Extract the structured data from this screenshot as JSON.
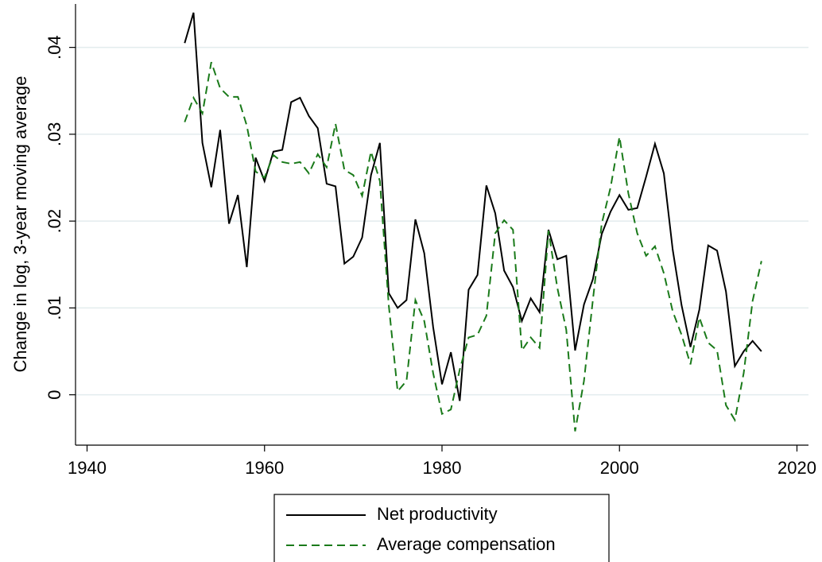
{
  "chart_data": {
    "type": "line",
    "y_label": "Change in log, 3-year moving average",
    "x": [
      1951,
      1952,
      1953,
      1954,
      1955,
      1956,
      1957,
      1958,
      1959,
      1960,
      1961,
      1962,
      1963,
      1964,
      1965,
      1966,
      1967,
      1968,
      1969,
      1970,
      1971,
      1972,
      1973,
      1974,
      1975,
      1976,
      1977,
      1978,
      1979,
      1980,
      1981,
      1982,
      1983,
      1984,
      1985,
      1986,
      1987,
      1988,
      1989,
      1990,
      1991,
      1992,
      1993,
      1994,
      1995,
      1996,
      1997,
      1998,
      1999,
      2000,
      2001,
      2002,
      2003,
      2004,
      2005,
      2006,
      2007,
      2008,
      2009,
      2010,
      2011,
      2012,
      2013,
      2014,
      2015,
      2016
    ],
    "series": [
      {
        "name": "Net productivity",
        "color": "#000000",
        "dash": "solid",
        "values": [
          0.0405,
          0.044,
          0.029,
          0.0239,
          0.0305,
          0.0197,
          0.023,
          0.0147,
          0.0273,
          0.0246,
          0.028,
          0.0282,
          0.0337,
          0.0342,
          0.0321,
          0.0307,
          0.0243,
          0.024,
          0.0151,
          0.0159,
          0.0181,
          0.0253,
          0.029,
          0.0117,
          0.01,
          0.0109,
          0.0202,
          0.0163,
          0.0078,
          0.0012,
          0.0049,
          -0.0007,
          0.0121,
          0.0138,
          0.0241,
          0.0209,
          0.0143,
          0.0124,
          0.0085,
          0.0111,
          0.0095,
          0.019,
          0.0156,
          0.016,
          0.0051,
          0.0104,
          0.0133,
          0.0185,
          0.0211,
          0.023,
          0.0213,
          0.0215,
          0.0251,
          0.0289,
          0.0255,
          0.0167,
          0.0103,
          0.0055,
          0.0098,
          0.0172,
          0.0166,
          0.0119,
          0.0033,
          0.005,
          0.0062,
          0.005
        ]
      },
      {
        "name": "Average compensation",
        "color": "#1a7a1a",
        "dash": "dashed",
        "values": [
          0.0314,
          0.0342,
          0.0324,
          0.0383,
          0.0353,
          0.0343,
          0.0343,
          0.031,
          0.0257,
          0.025,
          0.0276,
          0.0268,
          0.0266,
          0.0268,
          0.0255,
          0.0277,
          0.0262,
          0.0312,
          0.0259,
          0.0253,
          0.0229,
          0.028,
          0.0246,
          0.0103,
          0.0004,
          0.0016,
          0.0109,
          0.0085,
          0.0025,
          -0.0022,
          -0.0017,
          0.0029,
          0.0066,
          0.0069,
          0.0091,
          0.0186,
          0.0201,
          0.019,
          0.0051,
          0.0066,
          0.0054,
          0.0189,
          0.0123,
          0.0075,
          -0.0042,
          0.0016,
          0.0109,
          0.0197,
          0.0239,
          0.0297,
          0.0232,
          0.0186,
          0.016,
          0.0171,
          0.014,
          0.0096,
          0.0069,
          0.0035,
          0.0089,
          0.006,
          0.0051,
          -0.0012,
          -0.0029,
          0.0025,
          0.0108,
          0.0154
        ]
      }
    ],
    "xlim": [
      1938.7,
      2021.3
    ],
    "ylim": [
      -0.0058,
      0.045
    ],
    "xticks": [
      1940,
      1960,
      1980,
      2000,
      2020
    ],
    "yticks": [
      0,
      {
        "value": 0.01,
        "label": ".01"
      },
      {
        "value": 0.02,
        "label": ".02"
      },
      {
        "value": 0.03,
        "label": ".03"
      },
      {
        "value": 0.04,
        "label": ".04"
      }
    ],
    "grid": true
  }
}
